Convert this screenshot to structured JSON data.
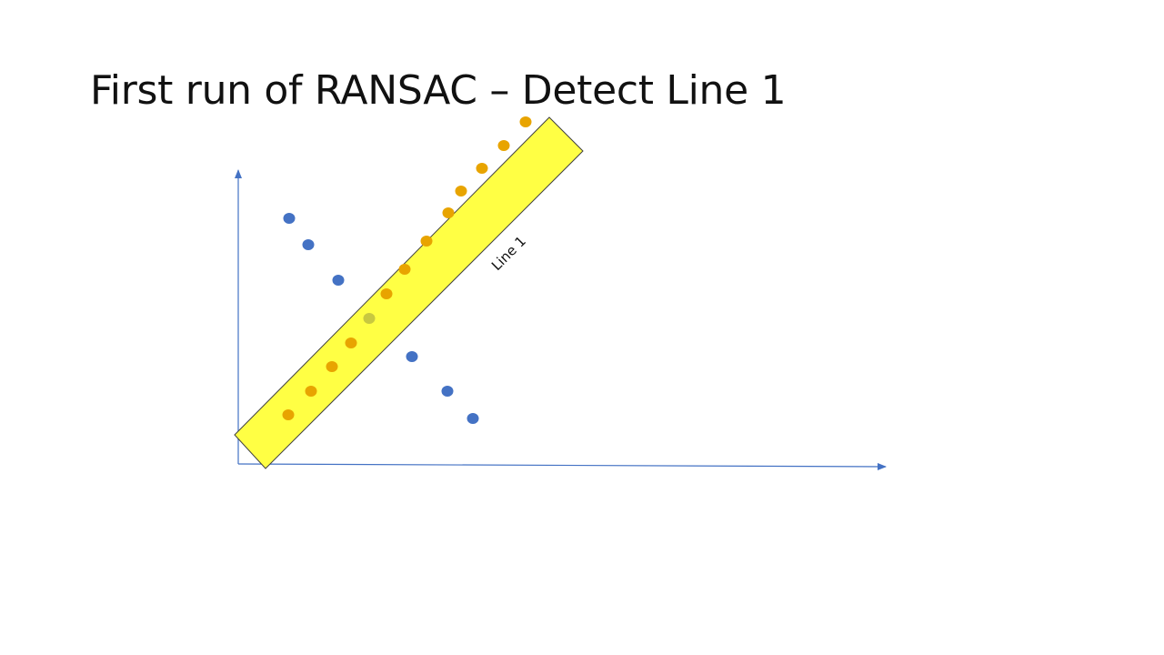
{
  "slide": {
    "title": "First run of RANSAC – Detect Line 1"
  },
  "diagram": {
    "band_label": "Line 1",
    "colors": {
      "axis": "#4472c4",
      "band_fill": "#ffff44",
      "band_stroke": "#404040",
      "outlier": "#4472c4",
      "inlier": "#e8a400",
      "highlighted_inlier": "#c8c840"
    },
    "points": {
      "inliers": [
        {
          "x": 0.55,
          "y": 0.54
        },
        {
          "x": 0.8,
          "y": 0.8
        },
        {
          "x": 1.03,
          "y": 1.07
        },
        {
          "x": 1.24,
          "y": 1.33
        },
        {
          "x": 1.63,
          "y": 1.87
        },
        {
          "x": 1.83,
          "y": 2.14
        },
        {
          "x": 2.07,
          "y": 2.45
        },
        {
          "x": 2.31,
          "y": 2.76
        },
        {
          "x": 2.45,
          "y": 3.0
        },
        {
          "x": 2.68,
          "y": 3.25
        },
        {
          "x": 2.92,
          "y": 3.5
        },
        {
          "x": 3.16,
          "y": 3.76
        }
      ],
      "highlighted_inlier": {
        "x": 1.44,
        "y": 1.6
      },
      "outliers": [
        {
          "x": 0.56,
          "y": 2.7
        },
        {
          "x": 0.77,
          "y": 2.41
        },
        {
          "x": 1.1,
          "y": 2.02
        },
        {
          "x": 1.91,
          "y": 1.18
        },
        {
          "x": 2.3,
          "y": 0.8
        },
        {
          "x": 2.58,
          "y": 0.5
        }
      ]
    }
  }
}
